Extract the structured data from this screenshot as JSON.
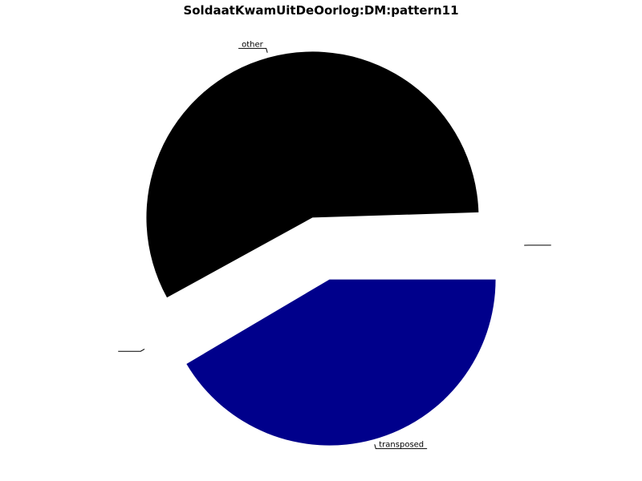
{
  "chart_data": {
    "type": "pie",
    "title": "SoldaatKwamUitDeOorlog:DM:pattern11",
    "slices": [
      {
        "label": "",
        "value": 0.5,
        "color": "#ffffff"
      },
      {
        "label": "other",
        "value": 57.5,
        "color": "#000000"
      },
      {
        "label": "",
        "value": 0.5,
        "color": "#ffffff"
      },
      {
        "label": "transposed",
        "value": 41.5,
        "color": "#00008b"
      }
    ],
    "exploded": true,
    "legend": "none"
  }
}
